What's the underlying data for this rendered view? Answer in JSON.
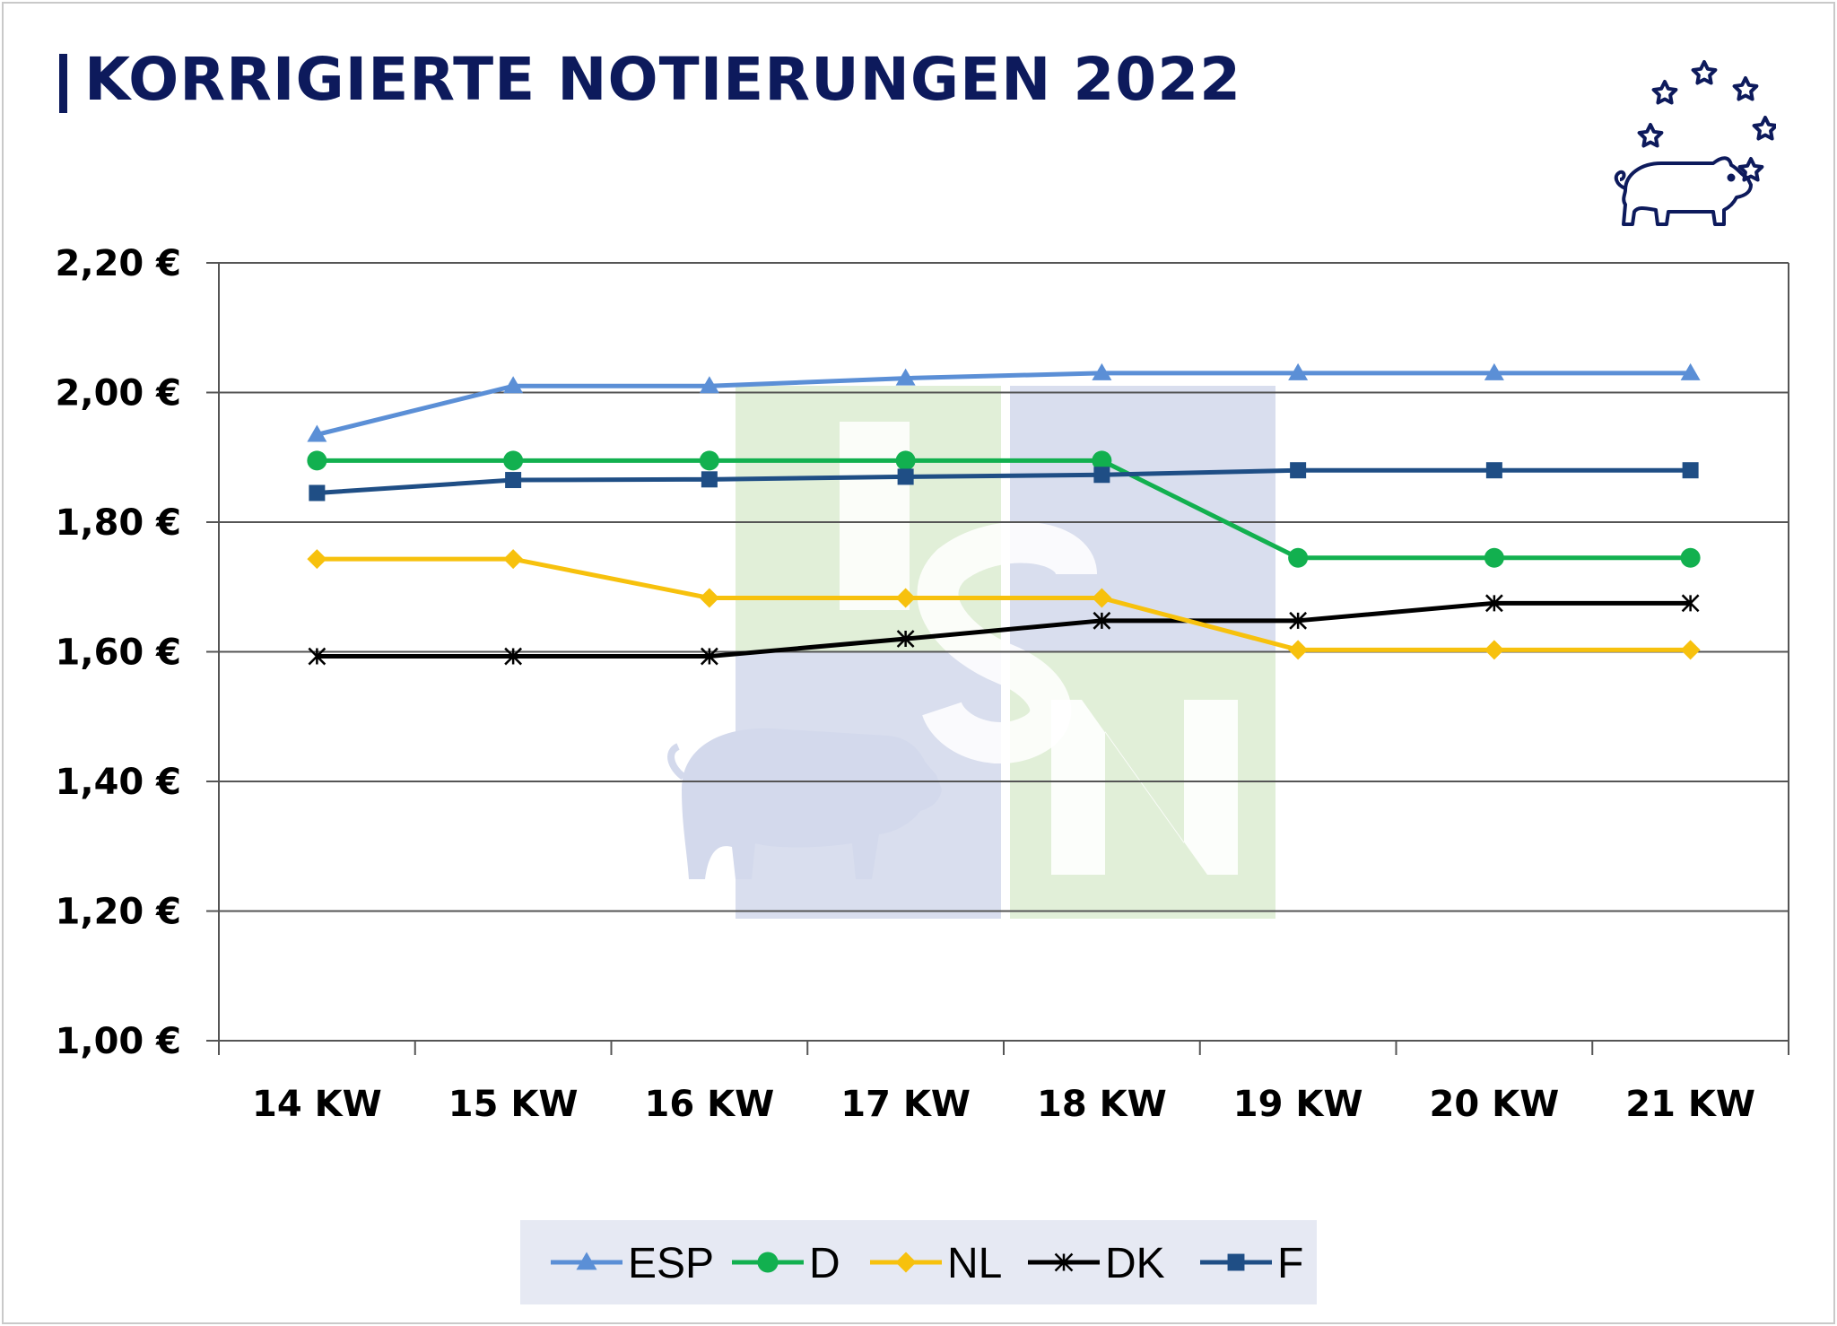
{
  "header": {
    "title": "KORRIGIERTE NOTIERUNGEN 2022"
  },
  "colors": {
    "title": "#0d1a5c",
    "ESP": "#5b8fd6",
    "D": "#12b04f",
    "NL": "#f7c10d",
    "DK": "#000000",
    "F": "#1f4e85",
    "watermark_blue": "#d9deee",
    "watermark_green": "#e1efd8"
  },
  "icons": [
    "pig-with-stars-logo-icon",
    "isn-watermark-icon"
  ],
  "chart_data": {
    "type": "line",
    "title": "",
    "xlabel": "",
    "ylabel": "",
    "categories": [
      "14 KW",
      "15 KW",
      "16 KW",
      "17 KW",
      "18 KW",
      "19 KW",
      "20 KW",
      "21 KW"
    ],
    "ylim": [
      1.0,
      2.2
    ],
    "yticks": [
      1.0,
      1.2,
      1.4,
      1.6,
      1.8,
      2.0,
      2.2
    ],
    "ytick_labels": [
      "1,00 €",
      "1,20 €",
      "1,40 €",
      "1,60 €",
      "1,80 €",
      "2,00 €",
      "2,20 €"
    ],
    "grid": "horizontal",
    "legend_position": "bottom",
    "series": [
      {
        "name": "ESP",
        "marker": "triangle",
        "color": "#5b8fd6",
        "values": [
          1.935,
          2.01,
          2.01,
          2.022,
          2.03,
          2.03,
          2.03,
          2.03
        ]
      },
      {
        "name": "D",
        "marker": "circle",
        "color": "#12b04f",
        "values": [
          1.895,
          1.895,
          1.895,
          1.895,
          1.895,
          1.745,
          1.745,
          1.745
        ]
      },
      {
        "name": "NL",
        "marker": "diamond",
        "color": "#f7c10d",
        "values": [
          1.743,
          1.743,
          1.683,
          1.683,
          1.683,
          1.603,
          1.603,
          1.603
        ]
      },
      {
        "name": "DK",
        "marker": "star",
        "color": "#000000",
        "values": [
          1.593,
          1.593,
          1.593,
          1.62,
          1.648,
          1.648,
          1.675,
          1.675
        ]
      },
      {
        "name": "F",
        "marker": "square",
        "color": "#1f4e85",
        "values": [
          1.845,
          1.865,
          1.866,
          1.87,
          1.873,
          1.88,
          1.88,
          1.88
        ]
      }
    ]
  }
}
